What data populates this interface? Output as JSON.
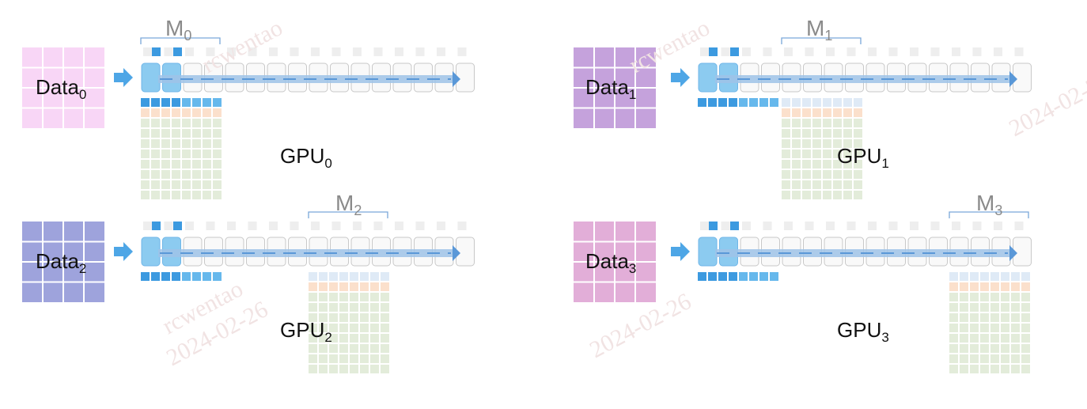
{
  "colors": {
    "arrow_blue": "#4ea6e6",
    "cell_gray_fill": "#f9f9f9",
    "cell_gray_stroke": "#c8c8c8",
    "light_gray": "#eeeeee",
    "dark_blue": "#3c9ae0",
    "mid_blue": "#66b8ec",
    "pale_blue": "#dfeaf6",
    "orange": "#fbe0cc",
    "green": "#e3ecda",
    "bracket": "#7aa7d9",
    "active_cell": "#8ccbf0"
  },
  "panels": [
    {
      "data_base": "Data",
      "data_sub": "0",
      "data_color": "#f8d6f6",
      "gpu_base": "GPU",
      "gpu_sub": "0",
      "m_base": "M",
      "m_sub": "0",
      "m_start": 0
    },
    {
      "data_base": "Data",
      "data_sub": "1",
      "data_color": "#c5a2dc",
      "gpu_base": "GPU",
      "gpu_sub": "1",
      "m_base": "M",
      "m_sub": "1",
      "m_start": 4
    },
    {
      "data_base": "Data",
      "data_sub": "2",
      "data_color": "#9ea3dc",
      "gpu_base": "GPU",
      "gpu_sub": "2",
      "m_base": "M",
      "m_sub": "2",
      "m_start": 8
    },
    {
      "data_base": "Data",
      "data_sub": "3",
      "data_color": "#e2aed8",
      "gpu_base": "GPU",
      "gpu_sub": "3",
      "m_base": "M",
      "m_sub": "3",
      "m_start": 12
    }
  ],
  "watermarks": [
    {
      "line1": "rcwentao",
      "line2": "2024-02-26"
    },
    {
      "line1": "rcwentao",
      "line2": "2024-02-26"
    },
    {
      "line1": "rcwentao",
      "line2": "2024-02-26"
    },
    {
      "line1": "rcwentao",
      "line2": "2024-02-26"
    },
    {
      "line1": "rcwentao",
      "line2": "2024-02-26"
    },
    {
      "line1": "rcwentao",
      "line2": "2024-02-26"
    }
  ]
}
